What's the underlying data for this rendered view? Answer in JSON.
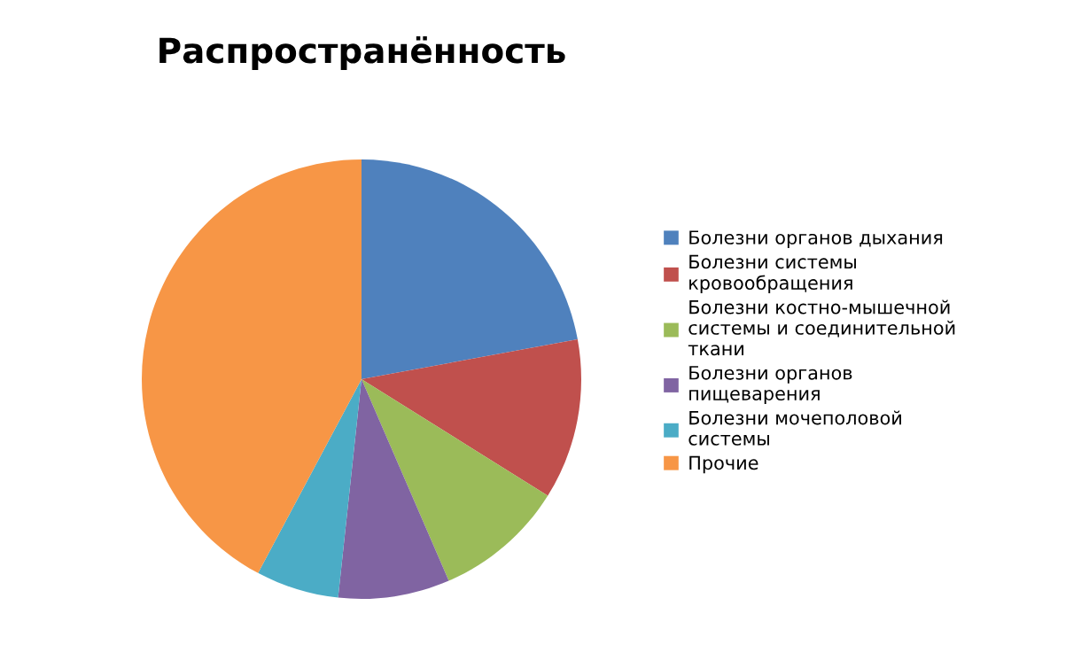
{
  "chart_data": {
    "type": "pie",
    "title": "Распространённость",
    "categories": [
      "Болезни органов дыхания",
      "Болезни системы кровообращения",
      "Болезни костно-мышечной системы и соединительной ткани",
      "Болезни органов пищеварения",
      "Болезни мочеполовой системы",
      "Прочие"
    ],
    "values": [
      22.1,
      11.8,
      9.6,
      8.2,
      6.1,
      42.2
    ],
    "colors": [
      "#4f81bd",
      "#c0504d",
      "#9bbb59",
      "#8064a2",
      "#4bacc6",
      "#f79646"
    ],
    "legend": "right"
  }
}
